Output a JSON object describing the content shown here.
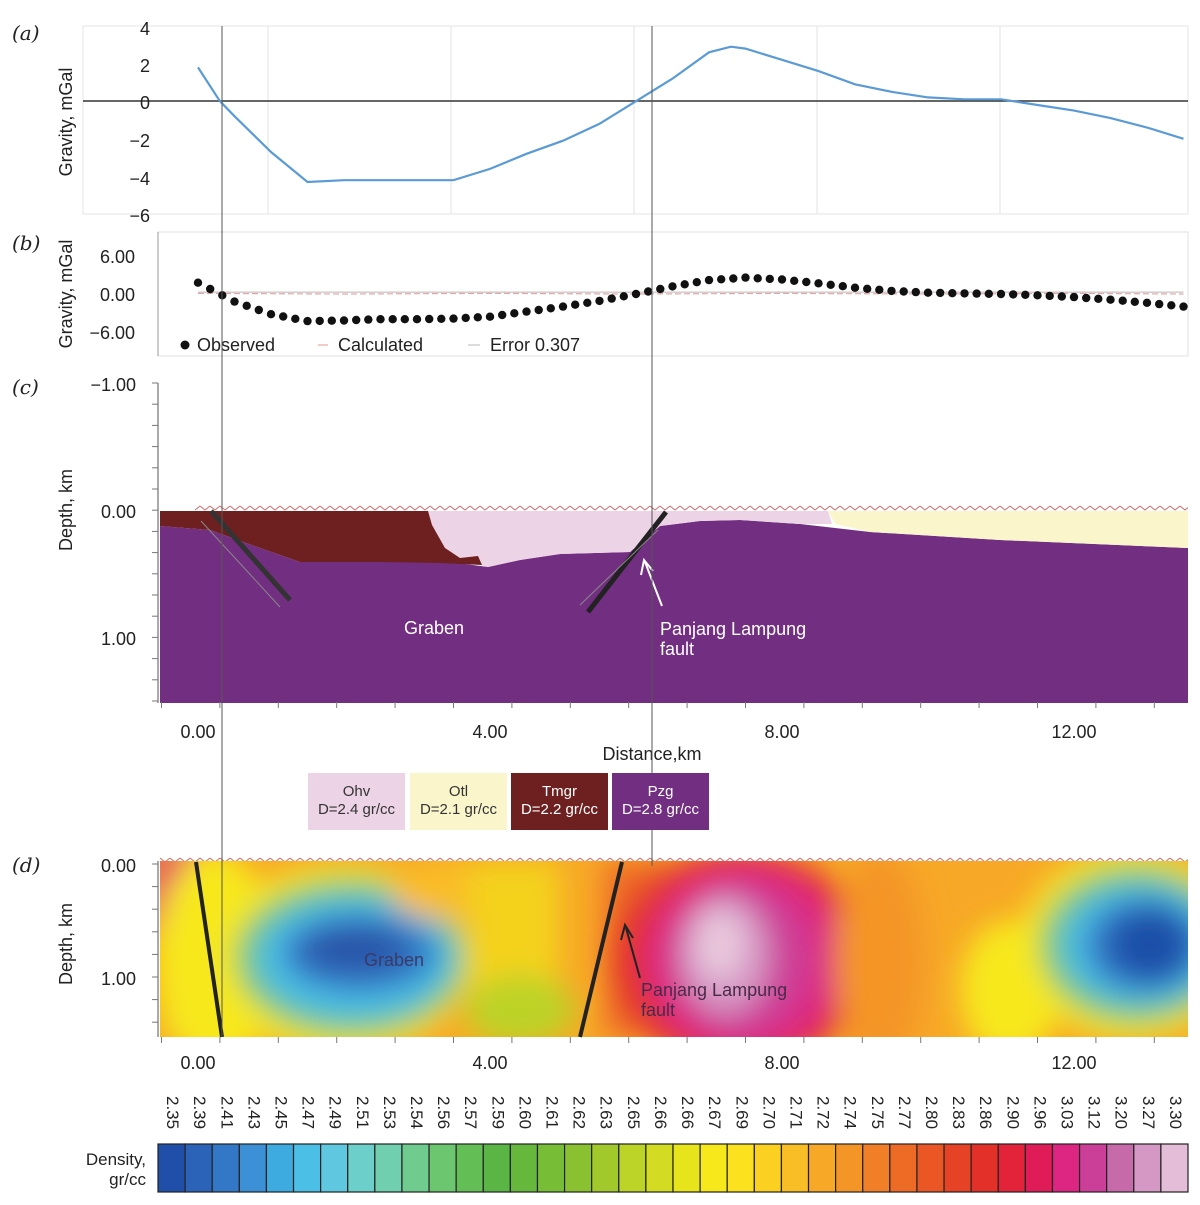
{
  "panels": {
    "a": {
      "letter": "(a)",
      "ylabel": "Gravity, mGal",
      "yticks": [
        "4",
        "2",
        "0",
        "−2",
        "−4",
        "−6"
      ]
    },
    "b": {
      "letter": "(b)",
      "ylabel": "Gravity, mGal",
      "yticks": [
        "6.00",
        "0.00",
        "−6.00"
      ],
      "legend": {
        "observed": "Observed",
        "calculated": "Calculated",
        "error": "Error 0.307"
      }
    },
    "c": {
      "letter": "(c)",
      "ylabel": "Depth, km",
      "yticks": [
        "−1.00",
        "0.00",
        "1.00"
      ],
      "xticks": [
        "0.00",
        "4.00",
        "8.00",
        "12.00"
      ],
      "xlabel": "Distance,km",
      "annotations": {
        "graben": "Graben",
        "fault_line1": "Panjang Lampung",
        "fault_line2": "fault"
      }
    },
    "d": {
      "letter": "(d)",
      "ylabel": "Depth, km",
      "yticks": [
        "0.00",
        "1.00"
      ],
      "xticks": [
        "0.00",
        "4.00",
        "8.00",
        "12.00"
      ],
      "annotations": {
        "graben": "Graben",
        "fault_line1": "Panjang Lampung",
        "fault_line2": "fault"
      }
    }
  },
  "units": [
    {
      "name": "Ohv",
      "density": "D=2.4 gr/cc",
      "color": "#ecd3e6",
      "text_color": "#333333"
    },
    {
      "name": "Otl",
      "density": "D=2.1 gr/cc",
      "color": "#fbf5cc",
      "text_color": "#333333"
    },
    {
      "name": "Tmgr",
      "density": "D=2.2 gr/cc",
      "color": "#6e2020",
      "text_color": "#ffffff"
    },
    {
      "name": "Pzg",
      "density": "D=2.8 gr/cc",
      "color": "#722e80",
      "text_color": "#ffffff"
    }
  ],
  "colorbar": {
    "label_line1": "Density,",
    "label_line2": "gr/cc",
    "values": [
      "2.35",
      "2.39",
      "2.41",
      "2.43",
      "2.45",
      "2.47",
      "2.49",
      "2.51",
      "2.53",
      "2.54",
      "2.56",
      "2.57",
      "2.59",
      "2.60",
      "2.61",
      "2.62",
      "2.63",
      "2.65",
      "2.66",
      "2.66",
      "2.67",
      "2.69",
      "2.70",
      "2.71",
      "2.72",
      "2.74",
      "2.75",
      "2.77",
      "2.80",
      "2.83",
      "2.86",
      "2.90",
      "2.96",
      "3.03",
      "3.12",
      "3.20",
      "3.27",
      "3.30"
    ],
    "colors": [
      "#1f4fa8",
      "#2b63b8",
      "#3378c6",
      "#3b90d6",
      "#3dabe0",
      "#4cbfe6",
      "#5fc7df",
      "#6ccfc9",
      "#70cfae",
      "#6fcc8e",
      "#6cc56f",
      "#62be55",
      "#5ab545",
      "#66b83c",
      "#77bd36",
      "#8ac131",
      "#a1c92c",
      "#bcd327",
      "#d3dc22",
      "#e8e41c",
      "#f7e81b",
      "#fce11e",
      "#fbd021",
      "#f9bd25",
      "#f7a827",
      "#f49528",
      "#f17f27",
      "#ee6b26",
      "#ea5725",
      "#e64226",
      "#e33029",
      "#e2233a",
      "#e01c58",
      "#dd2582",
      "#cc3f98",
      "#c76aaa",
      "#d597c4",
      "#e4bdd8"
    ]
  },
  "chart_data": [
    {
      "panel": "a",
      "type": "line",
      "xlim": [
        -0.5,
        13.5
      ],
      "ylim": [
        -6,
        4
      ],
      "ylabel": "Gravity, mGal",
      "series": [
        {
          "color": "#5b9bd5",
          "x": [
            0.0,
            0.3,
            0.5,
            1.0,
            1.5,
            2.0,
            2.5,
            3.0,
            3.5,
            4.0,
            4.5,
            5.0,
            5.5,
            6.0,
            6.5,
            7.0,
            7.3,
            7.5,
            8.0,
            8.5,
            9.0,
            9.5,
            10.0,
            10.5,
            11.0,
            11.5,
            12.0,
            12.5,
            13.0,
            13.5
          ],
          "y": [
            1.8,
            0.0,
            -0.8,
            -2.7,
            -4.3,
            -4.2,
            -4.2,
            -4.2,
            -4.2,
            -3.6,
            -2.8,
            -2.1,
            -1.2,
            0.0,
            1.2,
            2.6,
            2.9,
            2.8,
            2.2,
            1.6,
            0.9,
            0.5,
            0.2,
            0.1,
            0.1,
            -0.2,
            -0.5,
            -0.9,
            -1.4,
            -2.0
          ]
        }
      ]
    },
    {
      "panel": "b",
      "type": "scatter",
      "xlim": [
        -0.5,
        13.5
      ],
      "ylim": [
        -9,
        9
      ],
      "ylabel": "Gravity, mGal",
      "series": [
        {
          "name": "Observed",
          "marker": "dot",
          "x": [
            0.0,
            0.5,
            1.0,
            1.5,
            2.0,
            2.5,
            3.0,
            3.5,
            4.0,
            4.5,
            5.0,
            5.5,
            6.0,
            6.5,
            7.0,
            7.5,
            8.0,
            8.5,
            9.0,
            9.5,
            10.0,
            10.5,
            11.0,
            11.5,
            12.0,
            12.5,
            13.0,
            13.5
          ],
          "y": [
            1.8,
            -1.2,
            -3.2,
            -4.3,
            -4.2,
            -4.0,
            -4.0,
            -3.9,
            -3.6,
            -2.8,
            -2.0,
            -1.1,
            0.0,
            1.2,
            2.2,
            2.6,
            2.3,
            1.7,
            1.0,
            0.5,
            0.2,
            0.1,
            0.0,
            -0.2,
            -0.5,
            -0.9,
            -1.4,
            -2.0
          ]
        },
        {
          "name": "Calculated",
          "style": "line",
          "x": [
            0.0,
            2.0,
            4.0,
            6.0,
            8.0,
            10.0,
            12.0,
            13.5
          ],
          "y": [
            0.1,
            0.0,
            0.1,
            0.0,
            0.1,
            0.0,
            0.1,
            0.0
          ]
        },
        {
          "name": "Error 0.307",
          "style": "line",
          "x": [
            0.0,
            4.0,
            8.0,
            13.5
          ],
          "y": [
            0.3,
            0.3,
            0.3,
            0.3
          ]
        }
      ]
    },
    {
      "panel": "c",
      "type": "area",
      "xlim": [
        -0.55,
        13.55
      ],
      "ylim": [
        -1.0,
        1.5
      ],
      "xlabel": "Distance,km",
      "ylabel": "Depth, km",
      "layers": [
        "Ohv",
        "Otl",
        "Tmgr",
        "Pzg"
      ]
    },
    {
      "panel": "d",
      "type": "heatmap",
      "xlim": [
        -0.55,
        13.55
      ],
      "ylim": [
        0.0,
        1.55
      ],
      "ylabel": "Depth, km"
    }
  ]
}
